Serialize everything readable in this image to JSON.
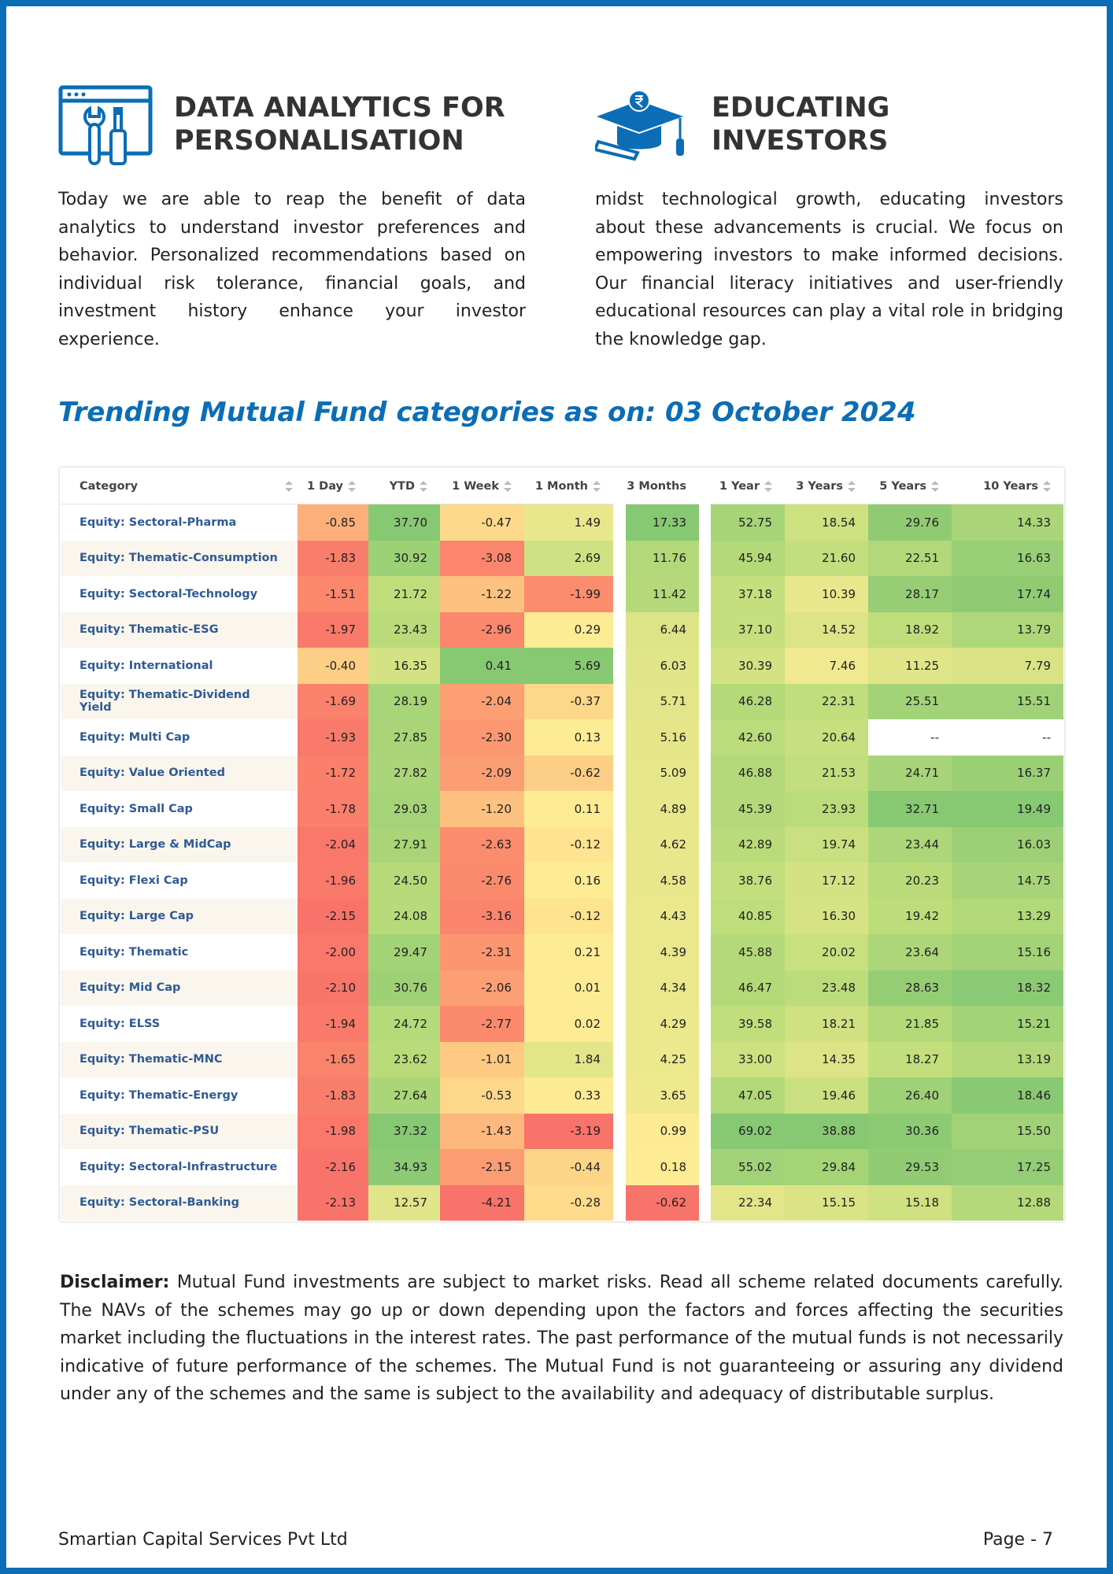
{
  "sections": [
    {
      "title": [
        "DATA ANALYTICS FOR",
        "PERSONALISATION"
      ],
      "text": "Today we are able to reap the benefit of data analytics to understand investor preferences and behavior. Personalized recommendations based on individual risk tolerance, financial goals, and investment history enhance your investor experience."
    },
    {
      "title": [
        "EDUCATING",
        "INVESTORS"
      ],
      "text": "midst technological growth, educating investors about these advancements is crucial. We focus on empowering investors to make informed decisions. Our financial literacy initiatives and user-friendly educational resources can play a vital role in bridging the knowledge gap."
    }
  ],
  "table": {
    "title": "Trending Mutual Fund categories as on: 03 October 2024",
    "columns": [
      "Category",
      "1 Day",
      "YTD",
      "1 Week",
      "1 Month",
      "3 Months",
      "1 Year",
      "3 Years",
      "5 Years",
      "10 Years"
    ],
    "rows": [
      {
        "category": "Equity: Sectoral-Pharma",
        "values": [
          "-0.85",
          "37.70",
          "-0.47",
          "1.49",
          "17.33",
          "52.75",
          "18.54",
          "29.76",
          "14.33"
        ]
      },
      {
        "category": "Equity: Thematic-Consumption",
        "values": [
          "-1.83",
          "30.92",
          "-3.08",
          "2.69",
          "11.76",
          "45.94",
          "21.60",
          "22.51",
          "16.63"
        ]
      },
      {
        "category": "Equity: Sectoral-Technology",
        "values": [
          "-1.51",
          "21.72",
          "-1.22",
          "-1.99",
          "11.42",
          "37.18",
          "10.39",
          "28.17",
          "17.74"
        ]
      },
      {
        "category": "Equity: Thematic-ESG",
        "values": [
          "-1.97",
          "23.43",
          "-2.96",
          "0.29",
          "6.44",
          "37.10",
          "14.52",
          "18.92",
          "13.79"
        ]
      },
      {
        "category": "Equity: International",
        "values": [
          "-0.40",
          "16.35",
          "0.41",
          "5.69",
          "6.03",
          "30.39",
          "7.46",
          "11.25",
          "7.79"
        ]
      },
      {
        "category": "Equity: Thematic-Dividend Yield",
        "values": [
          "-1.69",
          "28.19",
          "-2.04",
          "-0.37",
          "5.71",
          "46.28",
          "22.31",
          "25.51",
          "15.51"
        ]
      },
      {
        "category": "Equity: Multi Cap",
        "values": [
          "-1.93",
          "27.85",
          "-2.30",
          "0.13",
          "5.16",
          "42.60",
          "20.64",
          "--",
          "--"
        ]
      },
      {
        "category": "Equity: Value Oriented",
        "values": [
          "-1.72",
          "27.82",
          "-2.09",
          "-0.62",
          "5.09",
          "46.88",
          "21.53",
          "24.71",
          "16.37"
        ]
      },
      {
        "category": "Equity: Small Cap",
        "values": [
          "-1.78",
          "29.03",
          "-1.20",
          "0.11",
          "4.89",
          "45.39",
          "23.93",
          "32.71",
          "19.49"
        ]
      },
      {
        "category": "Equity: Large & MidCap",
        "values": [
          "-2.04",
          "27.91",
          "-2.63",
          "-0.12",
          "4.62",
          "42.89",
          "19.74",
          "23.44",
          "16.03"
        ]
      },
      {
        "category": "Equity: Flexi Cap",
        "values": [
          "-1.96",
          "24.50",
          "-2.76",
          "0.16",
          "4.58",
          "38.76",
          "17.12",
          "20.23",
          "14.75"
        ]
      },
      {
        "category": "Equity: Large Cap",
        "values": [
          "-2.15",
          "24.08",
          "-3.16",
          "-0.12",
          "4.43",
          "40.85",
          "16.30",
          "19.42",
          "13.29"
        ]
      },
      {
        "category": "Equity: Thematic",
        "values": [
          "-2.00",
          "29.47",
          "-2.31",
          "0.21",
          "4.39",
          "45.88",
          "20.02",
          "23.64",
          "15.16"
        ]
      },
      {
        "category": "Equity: Mid Cap",
        "values": [
          "-2.10",
          "30.76",
          "-2.06",
          "0.01",
          "4.34",
          "46.47",
          "23.48",
          "28.63",
          "18.32"
        ]
      },
      {
        "category": "Equity: ELSS",
        "values": [
          "-1.94",
          "24.72",
          "-2.77",
          "0.02",
          "4.29",
          "39.58",
          "18.21",
          "21.85",
          "15.21"
        ]
      },
      {
        "category": "Equity: Thematic-MNC",
        "values": [
          "-1.65",
          "23.62",
          "-1.01",
          "1.84",
          "4.25",
          "33.00",
          "14.35",
          "18.27",
          "13.19"
        ]
      },
      {
        "category": "Equity: Thematic-Energy",
        "values": [
          "-1.83",
          "27.64",
          "-0.53",
          "0.33",
          "3.65",
          "47.05",
          "19.46",
          "26.40",
          "18.46"
        ]
      },
      {
        "category": "Equity: Thematic-PSU",
        "values": [
          "-1.98",
          "37.32",
          "-1.43",
          "-3.19",
          "0.99",
          "69.02",
          "38.88",
          "30.36",
          "15.50"
        ]
      },
      {
        "category": "Equity: Sectoral-Infrastructure",
        "values": [
          "-2.16",
          "34.93",
          "-2.15",
          "-0.44",
          "0.18",
          "55.02",
          "29.84",
          "29.53",
          "17.25"
        ]
      },
      {
        "category": "Equity: Sectoral-Banking",
        "values": [
          "-2.13",
          "12.57",
          "-4.21",
          "-0.28",
          "-0.62",
          "22.34",
          "15.15",
          "15.18",
          "12.88"
        ]
      }
    ]
  },
  "disclaimer": {
    "label": "Disclaimer:",
    "text": "Mutual Fund investments are subject to market risks. Read all scheme related documents carefully. The NAVs of the schemes may go up or down depending upon the factors and forces affecting the securities market including the fluctuations in the interest rates. The past performance of the mutual funds is not necessarily indicative of future performance of the schemes. The Mutual Fund is not guaranteeing or assuring any dividend under any of the schemes and the same is subject to the availability and adequacy of distributable surplus."
  },
  "footer": {
    "company": "Smartian Capital Services Pvt Ltd",
    "page": "Page - 7"
  }
}
